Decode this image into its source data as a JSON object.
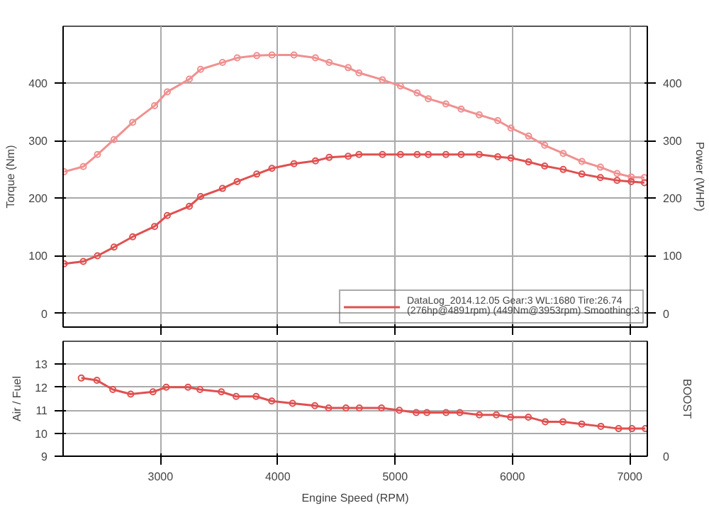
{
  "chart_data": [
    {
      "type": "line",
      "ylabel": "Torque (Nm)",
      "y2label": "Power (WHP)",
      "xlim": [
        2170,
        7150
      ],
      "xticks": [
        3000,
        4000,
        5000,
        6000,
        7000
      ],
      "ylim": [
        -24,
        499
      ],
      "yticks": [
        0,
        100,
        200,
        300,
        400
      ],
      "y2lim": [
        -24,
        499
      ],
      "y2ticks": [
        0,
        100,
        200,
        300,
        400
      ],
      "tick_labels": "y",
      "grid": true,
      "legend": "bottom right",
      "marker": "circle",
      "line_style": "solid",
      "series": [
        {
          "color": "#f09090",
          "x": [
            2179,
            2342,
            2463,
            2604,
            2763,
            2950,
            3058,
            3246,
            3342,
            3529,
            3654,
            3821,
            3950,
            4138,
            4321,
            4438,
            4600,
            4692,
            4892,
            5046,
            5188,
            5283,
            5433,
            5563,
            5717,
            5875,
            5988,
            6138,
            6275,
            6433,
            6592,
            6750,
            6892,
            7013,
            7125
          ],
          "values": [
            246,
            255,
            276,
            302,
            332,
            361,
            385,
            407,
            424,
            436,
            444,
            448,
            449,
            449,
            444,
            436,
            427,
            418,
            406,
            395,
            383,
            373,
            364,
            355,
            345,
            335,
            322,
            308,
            292,
            278,
            264,
            254,
            243,
            237,
            236
          ]
        },
        {
          "name": "DataLog_2014.12.05 Gear:3 WL:1680 Tire:26.74\n(276hp@4891rpm) (449Nm@3953rpm) Smoothing:3",
          "color": "#e05050",
          "x": [
            2179,
            2342,
            2463,
            2604,
            2763,
            2950,
            3058,
            3246,
            3342,
            3529,
            3654,
            3821,
            3950,
            4138,
            4321,
            4438,
            4600,
            4692,
            4892,
            5046,
            5188,
            5283,
            5433,
            5563,
            5717,
            5875,
            5988,
            6138,
            6275,
            6433,
            6592,
            6750,
            6892,
            7013,
            7125
          ],
          "values": [
            86,
            90,
            100,
            115,
            133,
            151,
            170,
            186,
            203,
            217,
            229,
            242,
            252,
            260,
            265,
            271,
            273,
            276,
            276,
            276,
            276,
            276,
            276,
            276,
            276,
            272,
            270,
            263,
            256,
            250,
            242,
            236,
            231,
            229,
            227
          ]
        }
      ]
    },
    {
      "type": "line",
      "xlabel": "Engine Speed (RPM)",
      "ylabel": "Air / Fuel",
      "y2label": "BOOST",
      "annotations": [
        "0"
      ],
      "xlim": [
        2170,
        7150
      ],
      "xticks": [
        3000,
        4000,
        5000,
        6000,
        7000
      ],
      "ylim": [
        9,
        14
      ],
      "yticks": [
        9,
        10,
        11,
        12,
        13
      ],
      "grid": true,
      "marker": "circle",
      "line_style": "solid",
      "series": [
        {
          "color": "#e05050",
          "x": [
            2325,
            2458,
            2594,
            2746,
            2936,
            3049,
            3235,
            3337,
            3519,
            3645,
            3815,
            3948,
            4126,
            4316,
            4433,
            4581,
            4695,
            4884,
            5036,
            5180,
            5271,
            5434,
            5552,
            5718,
            5863,
            5984,
            6136,
            6280,
            6431,
            6591,
            6754,
            6905,
            7019,
            7133
          ],
          "values": [
            12.4,
            12.3,
            11.9,
            11.7,
            11.8,
            12.0,
            12.0,
            11.9,
            11.8,
            11.6,
            11.6,
            11.4,
            11.3,
            11.2,
            11.1,
            11.1,
            11.1,
            11.1,
            11.0,
            10.9,
            10.9,
            10.9,
            10.9,
            10.8,
            10.8,
            10.7,
            10.7,
            10.5,
            10.5,
            10.4,
            10.3,
            10.2,
            10.2,
            10.2
          ]
        }
      ]
    }
  ]
}
